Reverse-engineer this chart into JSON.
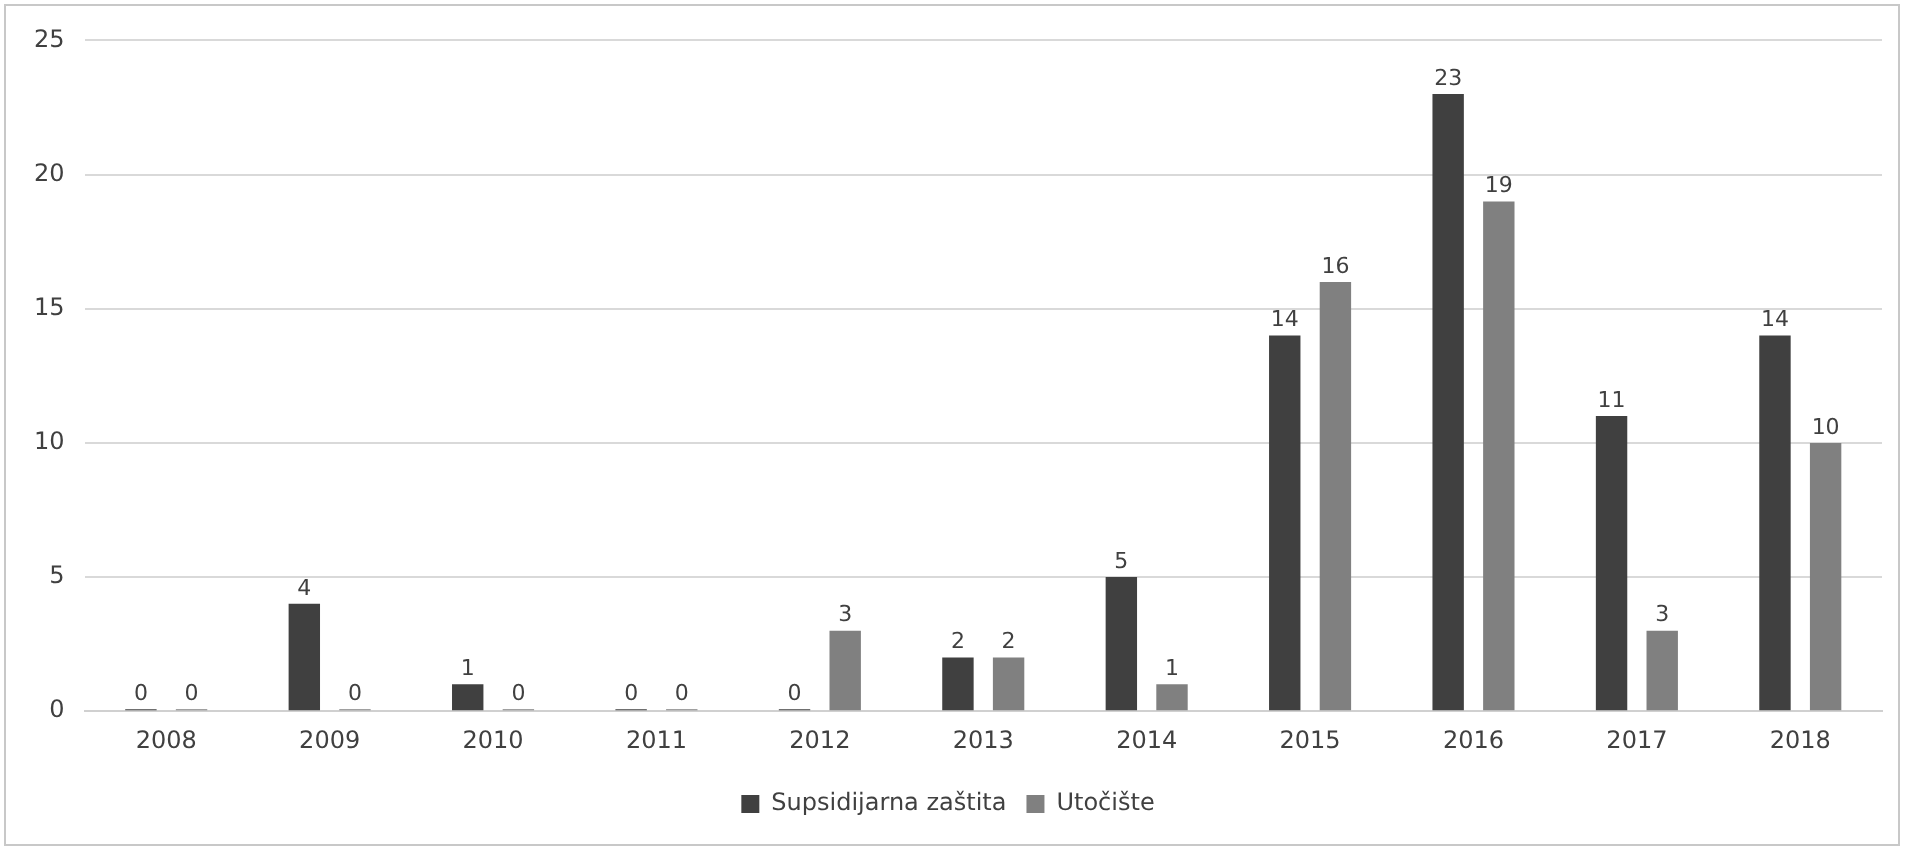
{
  "chart_data": {
    "type": "bar",
    "categories": [
      "2008",
      "2009",
      "2010",
      "2011",
      "2012",
      "2013",
      "2014",
      "2015",
      "2016",
      "2017",
      "2018"
    ],
    "series": [
      {
        "name": "Supsidijarna zaštita",
        "color": "#404040",
        "values": [
          0,
          4,
          1,
          0,
          0,
          2,
          5,
          14,
          23,
          11,
          14
        ]
      },
      {
        "name": "Utočište",
        "color": "#808080",
        "values": [
          0,
          0,
          0,
          0,
          3,
          2,
          1,
          16,
          19,
          3,
          10
        ]
      }
    ],
    "ylim": [
      0,
      25
    ],
    "yticks": [
      0,
      5,
      10,
      15,
      20,
      25
    ],
    "grid": "y",
    "legend": "bottom",
    "data_labels": true
  }
}
